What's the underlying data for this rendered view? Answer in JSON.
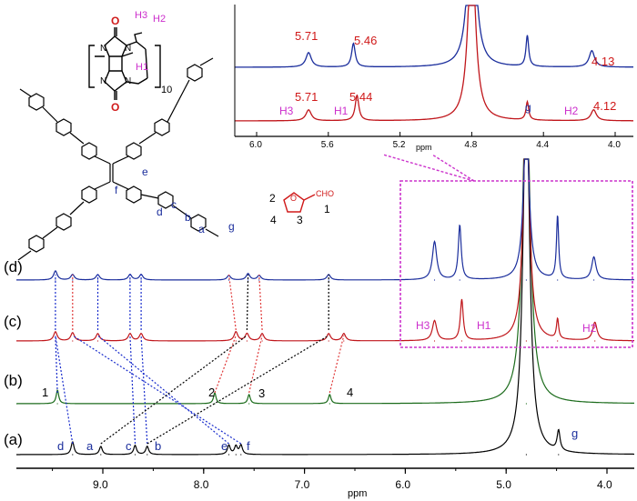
{
  "figure": {
    "colors": {
      "trace_a": "#000000",
      "trace_b": "#1b6b1b",
      "trace_c": "#c0161b",
      "trace_d": "#1a2d9c",
      "label_red": "#d01a1a",
      "label_magenta": "#cc2ecc",
      "label_blue": "#1a2d9c",
      "link_blue": "#1a2dcc",
      "link_red": "#e03a3a",
      "link_black": "#000000",
      "box_magenta": "#cc33cc"
    },
    "main_axis": {
      "xlabel": "ppm",
      "tick_labels": [
        "9.0",
        "8.0",
        "7.0",
        "6.0",
        "5.0",
        "4.0"
      ]
    },
    "inset_axis": {
      "xlabel": "ppm",
      "tick_labels": [
        "6.0",
        "5.6",
        "5.2",
        "4.8",
        "4.4",
        "4.0"
      ]
    },
    "trace_labels": {
      "d": "(d)",
      "c": "(c)",
      "b": "(b)",
      "a": "(a)"
    },
    "peak_labels_a": {
      "d": "d",
      "a": "a",
      "c": "c",
      "b": "b",
      "e": "e",
      "f": "f",
      "g": "g"
    },
    "peak_labels_b": {
      "p1": "1",
      "p2": "2",
      "p3": "3",
      "p4": "4"
    },
    "peak_labels_c": {
      "h3": "H3",
      "h1": "H1",
      "h2": "H2"
    },
    "inset_labels": {
      "top_571": "5.71",
      "top_546": "5.46",
      "top_413": "4.13",
      "bot_571": "5.71",
      "bot_544": "5.44",
      "bot_412": "4.12",
      "g": "g",
      "h3": "H3",
      "h1": "H1",
      "h2": "H2"
    },
    "structures": {
      "cb_h3": "H3",
      "cb_h2": "H2",
      "cb_h1": "H1",
      "cb_o1": "O",
      "cb_o2": "O",
      "cb_n1": "N",
      "cb_n2": "N",
      "cb_n3": "N",
      "cb_n4": "N",
      "cb_sub": "10",
      "tpe_f": "f",
      "tpe_e": "e",
      "tpe_d": "d",
      "tpe_c": "c",
      "tpe_b": "b",
      "tpe_a": "a",
      "tpe_g": "g",
      "fur_2": "2",
      "fur_3": "3",
      "fur_4": "4",
      "fur_1": "1",
      "fur_cho": "CHO",
      "fur_o": "O"
    }
  },
  "chart_data": {
    "type": "line",
    "title": "",
    "xlabel": "ppm",
    "ylabel": "",
    "x_reversed": true,
    "xlim": [
      9.72,
      3.85
    ],
    "series": [
      {
        "name": "(a)",
        "peaks_ppm": [
          9.3,
          9.02,
          8.68,
          8.56,
          7.75,
          7.68,
          7.63,
          4.8,
          4.48
        ],
        "labels": [
          "d",
          "a",
          "c",
          "b",
          "e",
          "",
          "f",
          "",
          "g"
        ]
      },
      {
        "name": "(b)",
        "peaks_ppm": [
          9.45,
          7.89,
          7.55,
          6.75,
          4.8
        ],
        "labels": [
          "1",
          "2",
          "3",
          "4",
          ""
        ]
      },
      {
        "name": "(c)",
        "peaks_ppm": [
          9.47,
          9.3,
          9.05,
          8.73,
          8.62,
          7.68,
          7.57,
          7.42,
          6.76,
          6.61,
          5.71,
          5.44,
          4.8,
          4.49,
          4.12
        ],
        "labels": [
          "",
          "",
          "",
          "",
          "",
          "",
          "",
          "",
          "",
          "",
          "H3",
          "H1",
          "",
          "",
          "H2"
        ]
      },
      {
        "name": "(d)",
        "peaks_ppm": [
          9.47,
          9.3,
          9.05,
          8.73,
          8.62,
          7.75,
          7.56,
          7.45,
          6.76,
          5.71,
          5.46,
          4.8,
          4.49,
          4.13
        ],
        "labels": [
          "",
          "",
          "",
          "",
          "",
          "",
          "",
          "",
          "",
          "",
          "",
          "",
          "",
          ""
        ]
      }
    ],
    "inset": {
      "xlim": [
        6.1,
        3.9
      ],
      "xlabel": "ppm",
      "top_peaks_ppm": [
        5.71,
        5.46,
        4.8,
        4.49,
        4.13
      ],
      "bottom_peaks_ppm": [
        5.71,
        5.44,
        4.8,
        4.49,
        4.12
      ]
    }
  }
}
